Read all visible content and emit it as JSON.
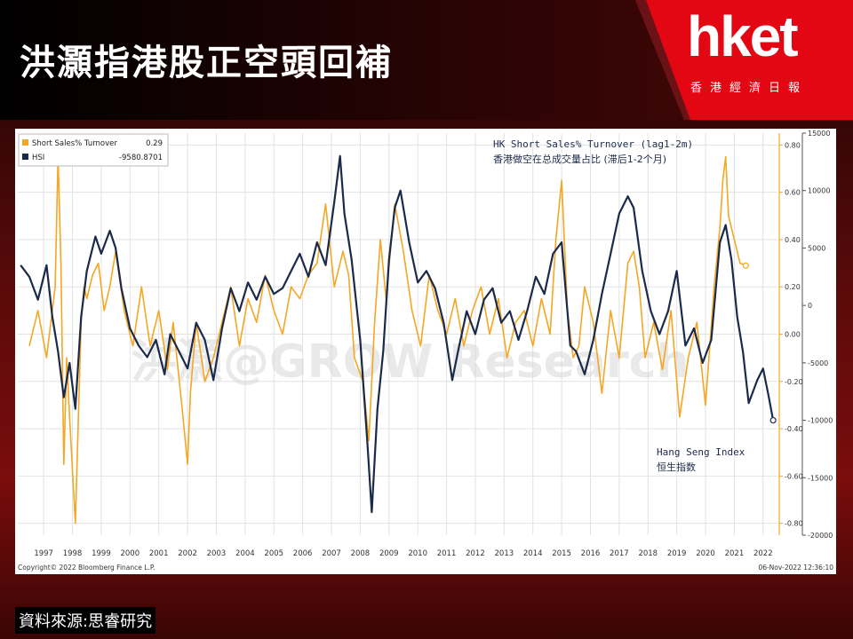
{
  "header": {
    "title": "洪灝指港股正空頭回補",
    "logo": "hket",
    "logo_sub": "香港經濟日報"
  },
  "footer": {
    "source": "資料來源:思睿研究"
  },
  "colors": {
    "short_sales": "#f5a623",
    "hsi": "#1c2a4a",
    "accent": "#e00000"
  },
  "chart_data": {
    "type": "line",
    "legend": [
      {
        "name": "Short Sales% Turnover",
        "value": "0.29"
      },
      {
        "name": "HSI",
        "value": "-9580.8701"
      }
    ],
    "annotations": {
      "short_sales_en": "HK Short Sales% Turnover (lag1-2m)",
      "short_sales_cn": "香港做空在总成交量占比 (滞后1-2个月)",
      "hsi_en": "Hang Seng Index",
      "hsi_cn": "恒生指数"
    },
    "watermark": "洪灝@GROW Research",
    "copyright": "Copyright© 2022 Bloomberg Finance L.P.",
    "timestamp": "06-Nov-2022 12:36:10",
    "x_labels": [
      "1997",
      "1998",
      "1999",
      "2000",
      "2001",
      "2002",
      "2003",
      "2004",
      "2005",
      "2006",
      "2007",
      "2008",
      "2009",
      "2010",
      "2011",
      "2012",
      "2013",
      "2014",
      "2015",
      "2016",
      "2017",
      "2018",
      "2019",
      "2020",
      "2021",
      "2022"
    ],
    "y_left_ticks": [
      "0.80",
      "0.60",
      "0.40",
      "0.20",
      "0.00",
      "-0.20",
      "-0.40",
      "-0.60",
      "-0.80"
    ],
    "y_right_ticks": [
      "15000",
      "10000",
      "5000",
      "0",
      "-5000",
      "-10000",
      "-15000",
      "-20000"
    ],
    "ylim_left": [
      -0.85,
      0.85
    ],
    "ylim_right": [
      -20000,
      15000
    ],
    "xlim": [
      1996.6,
      2023.0
    ],
    "series": [
      {
        "name": "Short Sales% Turnover",
        "axis": "left",
        "x": [
          1997.0,
          1997.3,
          1997.6,
          1997.9,
          1998.0,
          1998.1,
          1998.2,
          1998.3,
          1998.4,
          1998.6,
          1998.8,
          1998.9,
          1999.0,
          1999.2,
          1999.4,
          1999.6,
          1999.8,
          2000.0,
          2000.3,
          2000.6,
          2000.9,
          2001.2,
          2001.5,
          2001.8,
          2002.0,
          2002.3,
          2002.5,
          2002.6,
          2002.8,
          2003.1,
          2003.4,
          2003.7,
          2004.0,
          2004.3,
          2004.6,
          2004.9,
          2005.2,
          2005.5,
          2005.8,
          2006.1,
          2006.4,
          2006.7,
          2007.0,
          2007.3,
          2007.6,
          2007.9,
          2008.1,
          2008.3,
          2008.6,
          2008.8,
          2009.0,
          2009.2,
          2009.4,
          2009.7,
          2010.0,
          2010.3,
          2010.6,
          2010.9,
          2011.2,
          2011.5,
          2011.8,
          2012.1,
          2012.4,
          2012.7,
          2013.0,
          2013.3,
          2013.6,
          2013.9,
          2014.2,
          2014.5,
          2014.8,
          2015.1,
          2015.3,
          2015.5,
          2015.7,
          2015.9,
          2016.1,
          2016.3,
          2016.6,
          2016.9,
          2017.2,
          2017.5,
          2017.8,
          2018.0,
          2018.2,
          2018.4,
          2018.7,
          2019.0,
          2019.3,
          2019.6,
          2019.9,
          2020.2,
          2020.5,
          2020.8,
          2021.0,
          2021.1,
          2021.2,
          2021.3,
          2021.5,
          2021.7,
          2021.9
        ],
        "y": [
          -0.05,
          0.1,
          -0.1,
          0.2,
          0.75,
          0.3,
          -0.55,
          -0.1,
          -0.35,
          -0.8,
          0.05,
          0.2,
          0.15,
          0.25,
          0.3,
          0.1,
          0.2,
          0.35,
          0.1,
          -0.05,
          0.2,
          -0.05,
          0.1,
          -0.15,
          0.05,
          -0.3,
          -0.55,
          -0.25,
          0.05,
          -0.2,
          -0.1,
          0.05,
          0.2,
          -0.05,
          0.15,
          0.05,
          0.25,
          0.1,
          0.0,
          0.2,
          0.15,
          0.25,
          0.3,
          0.55,
          0.2,
          0.35,
          0.25,
          -0.1,
          -0.2,
          -0.45,
          0.05,
          0.4,
          0.15,
          0.55,
          0.35,
          0.1,
          -0.05,
          0.25,
          0.1,
          0.0,
          0.15,
          -0.05,
          0.1,
          0.2,
          0.0,
          0.15,
          -0.1,
          0.05,
          0.1,
          -0.05,
          0.15,
          0.0,
          0.4,
          0.65,
          0.1,
          -0.1,
          -0.05,
          0.2,
          0.05,
          -0.25,
          0.1,
          -0.1,
          0.3,
          0.35,
          0.2,
          -0.1,
          0.05,
          -0.15,
          0.1,
          -0.35,
          -0.1,
          0.05,
          -0.3,
          0.2,
          0.45,
          0.65,
          0.75,
          0.5,
          0.4,
          0.3,
          0.29
        ]
      },
      {
        "name": "HSI",
        "axis": "right",
        "x": [
          1996.7,
          1997.0,
          1997.3,
          1997.6,
          1997.8,
          1998.0,
          1998.2,
          1998.4,
          1998.6,
          1998.8,
          1999.0,
          1999.3,
          1999.5,
          1999.8,
          2000.0,
          2000.2,
          2000.5,
          2000.8,
          2001.1,
          2001.4,
          2001.7,
          2001.9,
          2002.2,
          2002.5,
          2002.8,
          2003.1,
          2003.4,
          2003.7,
          2004.0,
          2004.3,
          2004.6,
          2004.9,
          2005.2,
          2005.5,
          2005.8,
          2006.1,
          2006.4,
          2006.7,
          2007.0,
          2007.3,
          2007.6,
          2007.8,
          2007.95,
          2008.2,
          2008.5,
          2008.75,
          2008.9,
          2009.1,
          2009.3,
          2009.5,
          2009.7,
          2009.9,
          2010.2,
          2010.5,
          2010.8,
          2011.1,
          2011.4,
          2011.7,
          2011.9,
          2012.2,
          2012.5,
          2012.8,
          2013.1,
          2013.4,
          2013.7,
          2014.0,
          2014.3,
          2014.6,
          2014.9,
          2015.2,
          2015.5,
          2015.8,
          2016.0,
          2016.3,
          2016.6,
          2016.9,
          2017.2,
          2017.5,
          2017.8,
          2018.0,
          2018.3,
          2018.6,
          2018.9,
          2019.2,
          2019.5,
          2019.8,
          2020.1,
          2020.4,
          2020.7,
          2021.0,
          2021.2,
          2021.4,
          2021.6,
          2021.8,
          2022.0,
          2022.3,
          2022.5,
          2022.7,
          2022.85
        ],
        "y": [
          3500,
          2500,
          500,
          3500,
          -1000,
          -4000,
          -8000,
          -5000,
          -9000,
          -1000,
          3000,
          6000,
          4500,
          6500,
          5000,
          1500,
          -2000,
          -3500,
          -4500,
          -3000,
          -6000,
          -2500,
          -4000,
          -5500,
          -1500,
          -3000,
          -6500,
          -2000,
          1500,
          -500,
          2000,
          500,
          2500,
          1000,
          1500,
          3000,
          4500,
          2500,
          5500,
          3500,
          9000,
          13000,
          8000,
          4000,
          -3000,
          -12000,
          -18000,
          -9000,
          -4000,
          4000,
          8500,
          10000,
          5500,
          2000,
          3000,
          1500,
          -1500,
          -6500,
          -4000,
          -500,
          -2500,
          500,
          1500,
          -1500,
          -500,
          -3000,
          -500,
          2500,
          1000,
          4500,
          5500,
          -3500,
          -4000,
          -6000,
          -3000,
          1000,
          4500,
          8000,
          9500,
          8500,
          3000,
          -500,
          -2500,
          -500,
          3000,
          -3500,
          -2000,
          -5000,
          -3000,
          5500,
          7000,
          4000,
          -1000,
          -4000,
          -8500,
          -6500,
          -5500,
          -8000,
          -10000
        ]
      }
    ]
  }
}
